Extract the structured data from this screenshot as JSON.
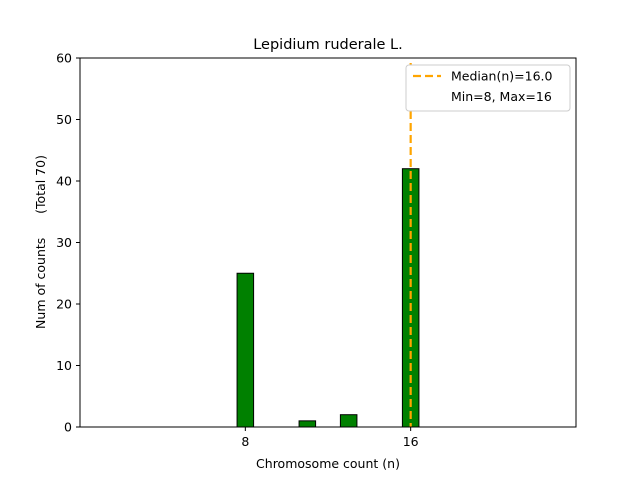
{
  "chart_data": {
    "type": "bar",
    "title": "Lepidium ruderale L.",
    "xlabel": "Chromosome count (n)",
    "ylabel": "Num of counts      (Total 70)",
    "x": [
      3,
      4,
      5,
      6,
      7,
      8,
      9,
      10,
      11,
      12,
      13,
      14,
      15,
      16,
      17,
      18
    ],
    "values": [
      0,
      0,
      0,
      0,
      0,
      25,
      0,
      0,
      1,
      0,
      2,
      0,
      0,
      42,
      0,
      0
    ],
    "xlim": [
      0,
      24
    ],
    "ylim": [
      0,
      60
    ],
    "xticks": [
      8,
      16
    ],
    "yticks": [
      0,
      10,
      20,
      30,
      40,
      50,
      60
    ],
    "median": 16.0,
    "legend": {
      "position": "top-right",
      "entries": [
        "Median(n)=16.0",
        "Min=8, Max=16"
      ]
    },
    "colors": {
      "bar": "#008000",
      "edge": "#000000",
      "median": "#FFA500"
    }
  }
}
